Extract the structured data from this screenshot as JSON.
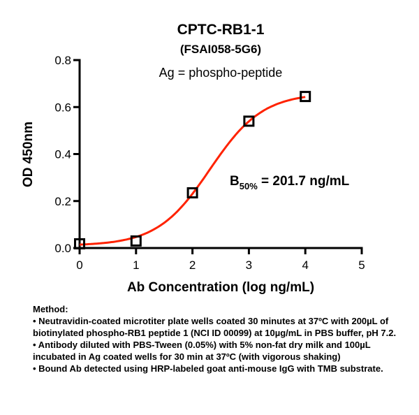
{
  "chart_data": {
    "type": "scatter",
    "title": "CPTC-RB1-1",
    "subtitle": "(FSAI058-5G6)",
    "annotation": "Ag = phospho-peptide",
    "b50": {
      "label_main": "B",
      "label_sub": "50%",
      "label_value": " = 201.7 ng/mL"
    },
    "xlabel": "Ab Concentration (log ng/mL)",
    "ylabel": "OD 450nm",
    "xlim": [
      0,
      5
    ],
    "ylim": [
      0,
      0.8
    ],
    "xticks": [
      "0",
      "1",
      "2",
      "3",
      "4",
      "5"
    ],
    "yticks": [
      "0.0",
      "0.2",
      "0.4",
      "0.6",
      "0.8"
    ],
    "grid": false,
    "series": [
      {
        "name": "data",
        "marker": "open-square",
        "x": [
          0,
          1,
          2,
          3,
          4
        ],
        "y": [
          0.018,
          0.03,
          0.235,
          0.54,
          0.645
        ]
      }
    ],
    "fit": {
      "model": "4PL",
      "bottom": 0.01,
      "top": 0.66,
      "log_ec50": 2.31,
      "hill": 0.93,
      "color": "#ff2200"
    }
  },
  "method": {
    "heading": "Method:",
    "lines": [
      "• Neutravidin-coated microtiter plate wells coated 30 minutes at 37ºC  with 200µL of biotinylated phospho-RB1 peptide 1 (NCI ID 00099) at 10µg/mL in PBS buffer, pH 7.2.",
      "• Antibody diluted with PBS-Tween (0.05%) with 5% non-fat dry milk and 100µL incubated in Ag coated wells for 30 min at 37ºC (with vigorous shaking)",
      "• Bound Ab detected using HRP-labeled goat anti-mouse IgG with TMB substrate."
    ]
  }
}
